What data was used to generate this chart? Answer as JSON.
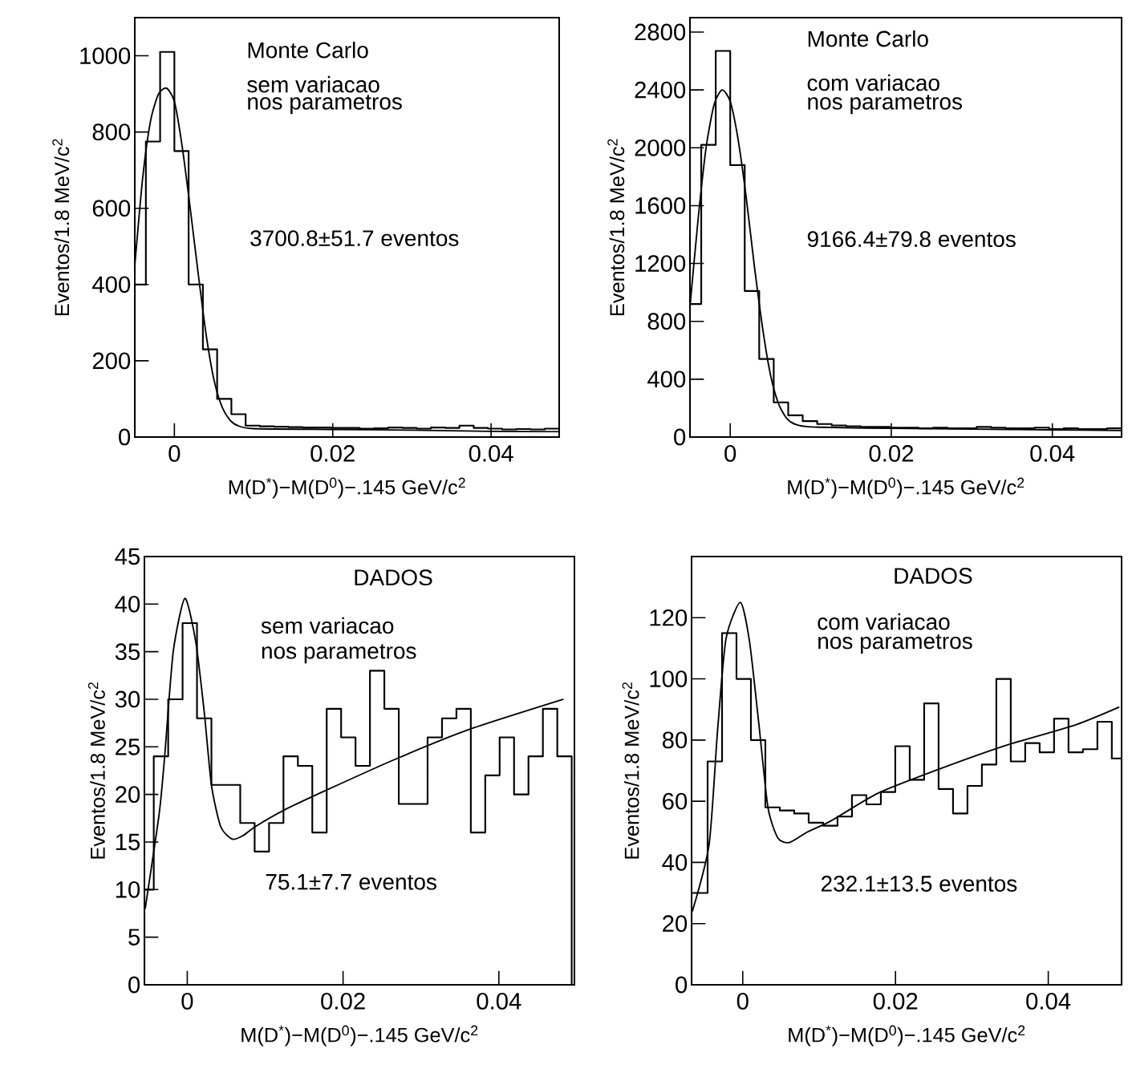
{
  "chart_data": [
    {
      "type": "histogram",
      "xlabel": "M(D$^{*}$)−M(D$^{0}$)−.145   GeV/c$^{2}$",
      "ylabel": "Eventos/1.8 MeV/c$^{2}$",
      "xlim": [
        -0.005,
        0.0486
      ],
      "ylim": [
        0,
        1100
      ],
      "xticks": [
        0,
        0.02,
        0.04
      ],
      "yticks": [
        0,
        200,
        400,
        600,
        800,
        1000
      ],
      "annotations": [
        "Monte Carlo",
        "sem variacao",
        "nos parametros",
        "3700.8±51.7 eventos"
      ],
      "color": "#000000",
      "bins": [
        -0.005,
        -0.0036,
        -0.0018,
        0,
        0.0018,
        0.0036,
        0.0054,
        0.0072,
        0.009,
        0.0108,
        0.0126,
        0.0144,
        0.0162,
        0.018,
        0.0198,
        0.0216,
        0.0234,
        0.0252,
        0.027,
        0.0288,
        0.0306,
        0.0324,
        0.0342,
        0.036,
        0.0378,
        0.0396,
        0.0414,
        0.0432,
        0.045,
        0.0468,
        0.0486
      ],
      "values": [
        400,
        775,
        1010,
        750,
        400,
        230,
        100,
        60,
        30,
        28,
        27,
        26,
        25,
        25,
        24,
        24,
        22,
        23,
        25,
        24,
        22,
        25,
        24,
        30,
        24,
        22,
        20,
        21,
        20,
        22
      ],
      "series": [
        {
          "type": "line",
          "color": "#000000",
          "x": [
            -0.005,
            -0.004,
            -0.003,
            -0.002,
            -0.001,
            0,
            0.001,
            0.002,
            0.003,
            0.004,
            0.005,
            0.006,
            0.007,
            0.008,
            0.01,
            0.02,
            0.03,
            0.04,
            0.0486
          ],
          "values": [
            450,
            680,
            830,
            900,
            915,
            880,
            760,
            600,
            430,
            270,
            150,
            80,
            45,
            30,
            22,
            20,
            18,
            15,
            14
          ]
        }
      ]
    },
    {
      "type": "histogram",
      "xlabel": "M(D$^{*}$)−M(D$^{0}$)−.145   GeV/c$^{2}$",
      "ylabel": "Eventos/1.8 MeV/c$^{2}$",
      "xlim": [
        -0.005,
        0.0486
      ],
      "ylim": [
        0,
        2900
      ],
      "xticks": [
        0,
        0.02,
        0.04
      ],
      "yticks": [
        0,
        400,
        800,
        1200,
        1600,
        2000,
        2400,
        2800
      ],
      "annotations": [
        "Monte Carlo",
        "com variacao",
        "nos parametros",
        "9166.4±79.8 eventos"
      ],
      "color": "#000000",
      "bins": [
        -0.005,
        -0.0036,
        -0.0018,
        0,
        0.0018,
        0.0036,
        0.0054,
        0.0072,
        0.009,
        0.0108,
        0.0126,
        0.0144,
        0.0162,
        0.018,
        0.0198,
        0.0216,
        0.0234,
        0.0252,
        0.027,
        0.0288,
        0.0306,
        0.0324,
        0.0342,
        0.036,
        0.0378,
        0.0396,
        0.0414,
        0.0432,
        0.045,
        0.0468,
        0.0486
      ],
      "values": [
        920,
        2020,
        2670,
        1880,
        1010,
        540,
        240,
        150,
        110,
        90,
        80,
        75,
        70,
        70,
        65,
        65,
        60,
        65,
        60,
        60,
        70,
        65,
        60,
        60,
        65,
        55,
        60,
        55,
        55,
        60
      ],
      "series": [
        {
          "type": "line",
          "color": "#000000",
          "x": [
            -0.005,
            -0.004,
            -0.003,
            -0.002,
            -0.001,
            0,
            0.001,
            0.002,
            0.003,
            0.004,
            0.005,
            0.006,
            0.007,
            0.008,
            0.01,
            0.02,
            0.03,
            0.04,
            0.0486
          ],
          "values": [
            900,
            1500,
            2000,
            2300,
            2400,
            2320,
            2050,
            1650,
            1180,
            760,
            430,
            230,
            130,
            90,
            70,
            60,
            55,
            50,
            45
          ]
        }
      ]
    },
    {
      "type": "histogram",
      "xlabel": "M(D$^{*}$)−M(D$^{0}$)−.145   GeV/c$^{2}$",
      "ylabel": "Eventos/1.8 MeV/c$^{2}$",
      "xlim": [
        -0.0055,
        0.0497
      ],
      "ylim": [
        0,
        45
      ],
      "xticks": [
        0,
        0.02,
        0.04
      ],
      "yticks": [
        0,
        5,
        10,
        15,
        20,
        25,
        30,
        35,
        40,
        45
      ],
      "annotations": [
        "DADOS",
        "sem variacao",
        "nos parametros",
        "75.1±7.7 eventos"
      ],
      "color": "#000000",
      "bins": [
        -0.0055,
        -0.0043,
        -0.00245,
        -0.0006,
        0.00125,
        0.0031,
        0.00495,
        0.0068,
        0.00865,
        0.0105,
        0.01235,
        0.0142,
        0.01605,
        0.0179,
        0.01975,
        0.0216,
        0.02345,
        0.0253,
        0.02715,
        0.029,
        0.03085,
        0.0327,
        0.03455,
        0.0364,
        0.03825,
        0.0401,
        0.04195,
        0.0438,
        0.04565,
        0.0475,
        0.04935
      ],
      "values": [
        10,
        24,
        30,
        38,
        28,
        21,
        21,
        17,
        14,
        17,
        24,
        23,
        16,
        29,
        26,
        23,
        33,
        29,
        19,
        19,
        26,
        28,
        29,
        16,
        22,
        26,
        20,
        24,
        29,
        24
      ],
      "series": [
        {
          "type": "line",
          "color": "#000000",
          "x": [
            -0.0054,
            -0.0036,
            -0.0029,
            -0.0018,
            -0.0003,
            0.0011,
            0.0022,
            0.0031,
            0.0043,
            0.0058,
            0.0072,
            0.0087,
            0.0123,
            0.018,
            0.0267,
            0.0361,
            0.0483
          ],
          "values": [
            8,
            18,
            24,
            35,
            40.6,
            36,
            28.5,
            21,
            16.6,
            15.3,
            15.7,
            16.6,
            18.3,
            20.5,
            23.7,
            26.8,
            30
          ]
        }
      ]
    },
    {
      "type": "histogram",
      "xlabel": "M(D$^{*}$)−M(D$^{0}$)−.145   GeV/c$^{2}$",
      "ylabel": "Eventos/1.8 MeV/c$^{2}$",
      "xlim": [
        -0.0067,
        0.0496
      ],
      "ylim": [
        0,
        140
      ],
      "xticks": [
        0,
        0.02,
        0.04
      ],
      "yticks": [
        0,
        20,
        40,
        60,
        80,
        100,
        120
      ],
      "annotations": [
        "DADOS",
        "com variacao",
        "nos parametros",
        "232.1±13.5 eventos"
      ],
      "color": "#000000",
      "bins": [
        -0.0067,
        -0.0046,
        -0.00271,
        -0.00082,
        0.00107,
        0.00296,
        0.00485,
        0.00674,
        0.00863,
        0.01052,
        0.01241,
        0.0143,
        0.01619,
        0.01808,
        0.01997,
        0.02186,
        0.02375,
        0.02564,
        0.02753,
        0.02942,
        0.03131,
        0.0332,
        0.03509,
        0.03698,
        0.03887,
        0.04076,
        0.04265,
        0.04454,
        0.04643,
        0.04832,
        0.0496
      ],
      "values": [
        30,
        73,
        115,
        100,
        80,
        58,
        57,
        56,
        53,
        52,
        55,
        62,
        59,
        63,
        78,
        67,
        92,
        64,
        56,
        65,
        72,
        100,
        73,
        79,
        76,
        87,
        76,
        77,
        86,
        74
      ],
      "series": [
        {
          "type": "line",
          "color": "#000000",
          "x": [
            -0.0066,
            -0.0044,
            -0.0033,
            -0.0022,
            -0.0003,
            0.0009,
            0.0021,
            0.0033,
            0.0046,
            0.0061,
            0.0085,
            0.0115,
            0.0177,
            0.0252,
            0.0344,
            0.0436,
            0.0493
          ],
          "values": [
            24,
            46,
            83,
            113,
            125,
            112,
            85.5,
            58,
            48,
            46.5,
            50,
            53.5,
            62.6,
            70,
            78.2,
            85,
            90.8
          ]
        }
      ]
    }
  ]
}
